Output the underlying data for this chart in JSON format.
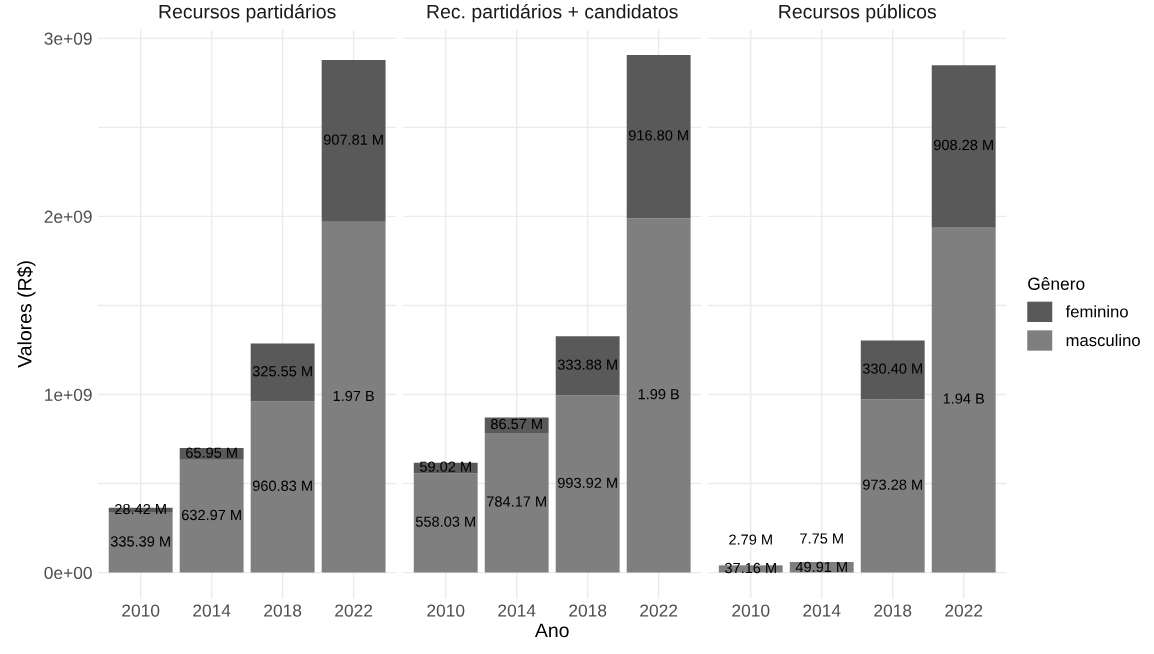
{
  "chart_data": [
    {
      "type": "bar",
      "title": "Recursos partidários",
      "ylabel": "Valores (R$)",
      "categories": [
        "2010",
        "2014",
        "2018",
        "2022"
      ],
      "stacked": true,
      "grid": true,
      "legend": false,
      "ylim": [
        -145000000,
        3050000000
      ],
      "yticks": [
        {
          "value": 0,
          "label": "0e+00"
        },
        {
          "value": 500000000,
          "label": null
        },
        {
          "value": 1000000000,
          "label": "1e+09"
        },
        {
          "value": 1500000000,
          "label": null
        },
        {
          "value": 2000000000,
          "label": "2e+09"
        },
        {
          "value": 2500000000,
          "label": null
        },
        {
          "value": 3000000000,
          "label": "3e+09"
        }
      ],
      "series": [
        {
          "color": "#7f7f7f",
          "values": [
            335390000,
            632970000,
            960830000,
            1970000000
          ],
          "value_labels": [
            "335.39 M",
            "632.97 M",
            "960.83 M",
            "1.97 B"
          ]
        },
        {
          "color": "#595959",
          "values": [
            28420000,
            65950000,
            325550000,
            907810000
          ],
          "value_labels": [
            "28.42 M",
            "65.95 M",
            "325.55 M",
            "907.81 M"
          ]
        }
      ]
    },
    {
      "type": "bar",
      "title": "Rec. partidários + candidatos",
      "xlabel": "Ano",
      "categories": [
        "2010",
        "2014",
        "2018",
        "2022"
      ],
      "stacked": true,
      "grid": true,
      "legend": false,
      "tick_labels": "x",
      "ylim": [
        -145000000,
        3050000000
      ],
      "yticks": [
        {
          "value": 0,
          "label": null
        },
        {
          "value": 500000000,
          "label": null
        },
        {
          "value": 1000000000,
          "label": null
        },
        {
          "value": 1500000000,
          "label": null
        },
        {
          "value": 2000000000,
          "label": null
        },
        {
          "value": 2500000000,
          "label": null
        },
        {
          "value": 3000000000,
          "label": null
        }
      ],
      "series": [
        {
          "color": "#7f7f7f",
          "values": [
            558030000,
            784170000,
            993920000,
            1990000000
          ],
          "value_labels": [
            "558.03 M",
            "784.17 M",
            "993.92 M",
            "1.99 B"
          ]
        },
        {
          "color": "#595959",
          "values": [
            59020000,
            86570000,
            333880000,
            916800000
          ],
          "value_labels": [
            "59.02 M",
            "86.57 M",
            "333.88 M",
            "916.80 M"
          ]
        }
      ]
    },
    {
      "type": "bar",
      "title": "Recursos públicos",
      "categories": [
        "2010",
        "2014",
        "2018",
        "2022"
      ],
      "stacked": true,
      "grid": true,
      "legend": "right",
      "legend_title": "Gênero",
      "tick_labels": "x",
      "ylim": [
        -145000000,
        3050000000
      ],
      "yticks": [
        {
          "value": 0,
          "label": null
        },
        {
          "value": 500000000,
          "label": null
        },
        {
          "value": 1000000000,
          "label": null
        },
        {
          "value": 1500000000,
          "label": null
        },
        {
          "value": 2000000000,
          "label": null
        },
        {
          "value": 2500000000,
          "label": null
        },
        {
          "value": 3000000000,
          "label": null
        }
      ],
      "series": [
        {
          "name": "masculino",
          "color": "#7f7f7f",
          "values": [
            37160000,
            49910000,
            973280000,
            1940000000
          ],
          "value_labels": [
            "37.16 M",
            "49.91 M",
            "973.28 M",
            "1.94 B"
          ]
        },
        {
          "name": "feminino",
          "color": "#595959",
          "values": [
            2790000,
            7750000,
            330400000,
            908280000
          ],
          "value_labels": [
            "2.79 M",
            "7.75 M",
            "330.40 M",
            "908.28 M"
          ]
        }
      ]
    }
  ]
}
